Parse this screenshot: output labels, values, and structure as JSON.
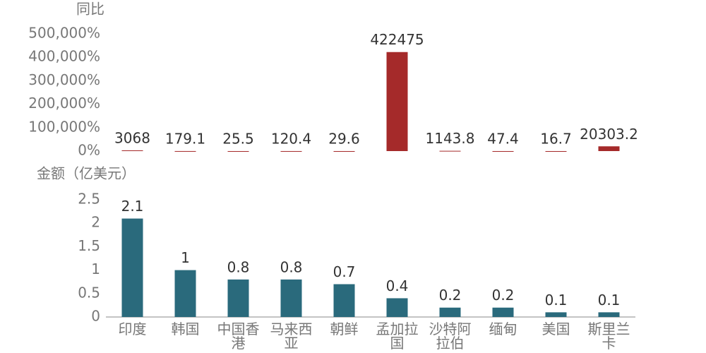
{
  "chart_data": [
    {
      "type": "bar",
      "title": "同比",
      "color": "#a52a2a",
      "categories": [
        "印度",
        "韩国",
        "中国香港",
        "马来西亚",
        "朝鲜",
        "孟加拉国",
        "沙特阿拉伯",
        "缅甸",
        "美国",
        "斯里兰卡"
      ],
      "values": [
        3068,
        179.1,
        25.5,
        120.4,
        29.6,
        422475,
        1143.8,
        47.4,
        16.7,
        20303.2
      ],
      "ylim": [
        0,
        500000
      ],
      "yticks": [
        {
          "value": 0,
          "label": "0%"
        },
        {
          "value": 100000,
          "label": "100,000%"
        },
        {
          "value": 200000,
          "label": "200,000%"
        },
        {
          "value": 300000,
          "label": "300,000%"
        },
        {
          "value": 400000,
          "label": "400,000%"
        },
        {
          "value": 500000,
          "label": "500,000%"
        }
      ]
    },
    {
      "type": "bar",
      "title": "金额（亿美元）",
      "color": "#2a6a7c",
      "categories": [
        "印度",
        "韩国",
        "中国香港",
        "马来西亚",
        "朝鲜",
        "孟加拉国",
        "沙特阿拉伯",
        "缅甸",
        "美国",
        "斯里兰卡"
      ],
      "values": [
        2.1,
        1,
        0.8,
        0.8,
        0.7,
        0.4,
        0.2,
        0.2,
        0.1,
        0.1
      ],
      "ylim": [
        0,
        2.5
      ],
      "yticks": [
        0,
        0.5,
        1,
        1.5,
        2,
        2.5
      ]
    }
  ]
}
